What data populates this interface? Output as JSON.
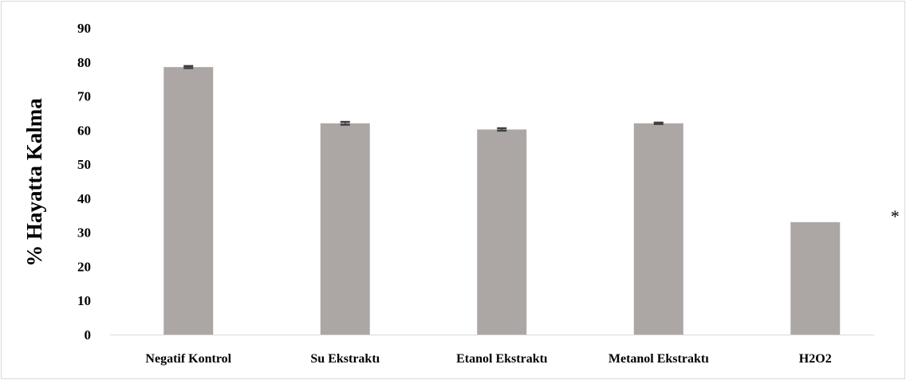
{
  "chart_data": {
    "type": "bar",
    "categories": [
      "Negatif Kontrol",
      "Su Ekstraktı",
      "Etanol Ekstraktı",
      "Metanol Ekstraktı",
      "H2O2"
    ],
    "values": [
      78.5,
      62,
      60.2,
      62,
      33
    ],
    "errors": [
      0.3,
      0.4,
      0.35,
      0.2,
      0
    ],
    "ylabel": "% Hayatta  Kalma",
    "xlabel": "",
    "ylim": [
      0,
      90
    ],
    "yticks": [
      0,
      10,
      20,
      30,
      40,
      50,
      60,
      70,
      80,
      90
    ],
    "grid": false,
    "annotations": [
      {
        "text": "*",
        "category": "H2O2"
      }
    ],
    "colors": {
      "bar": "#aca7a5",
      "error_bar": "#404040",
      "axis": "#d9d9d9",
      "frame": "#d9d9d9"
    }
  }
}
